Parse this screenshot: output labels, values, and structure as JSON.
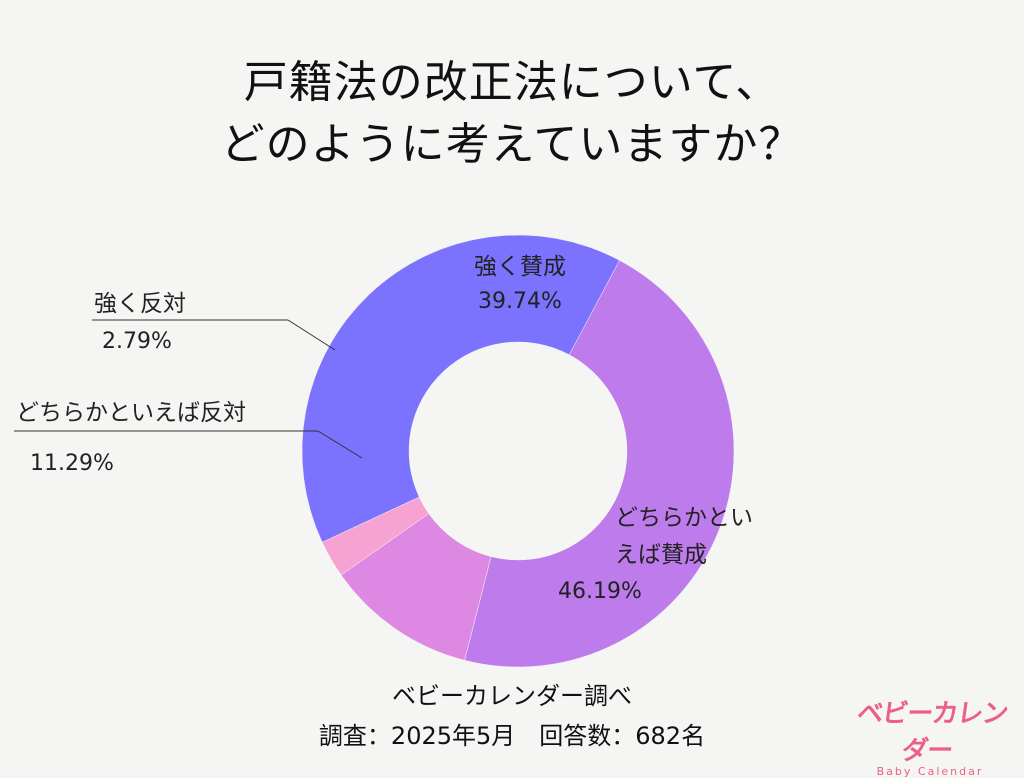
{
  "title_lines": [
    "戸籍法の改正法について、",
    "どのように考えていますか？"
  ],
  "source": {
    "line1": "ベビーカレンダー調べ",
    "line2": "調査：2025年5月　回答数：682名"
  },
  "logo": {
    "main": "ベビーカレンダー",
    "sub": "Baby Calendar"
  },
  "chart_data": {
    "type": "pie",
    "donut": true,
    "title": "戸籍法の改正法について、どのように考えていますか？",
    "slices": [
      {
        "label": "強く賛成",
        "label_lines": [
          "強く賛成"
        ],
        "value": 39.74,
        "value_label": "39.74%",
        "color": "#7b72fe"
      },
      {
        "label": "どちらかといえば賛成",
        "label_lines": [
          "どちらかとい",
          "えば賛成"
        ],
        "value": 46.19,
        "value_label": "46.19%",
        "color": "#bd7bec"
      },
      {
        "label": "どちらかといえば反対",
        "label_lines": [
          "どちらかといえば反対"
        ],
        "value": 11.29,
        "value_label": "11.29%",
        "color": "#dd88e3"
      },
      {
        "label": "強く反対",
        "label_lines": [
          "強く反対"
        ],
        "value": 2.79,
        "value_label": "2.79%",
        "color": "#f6a3d3"
      }
    ]
  }
}
